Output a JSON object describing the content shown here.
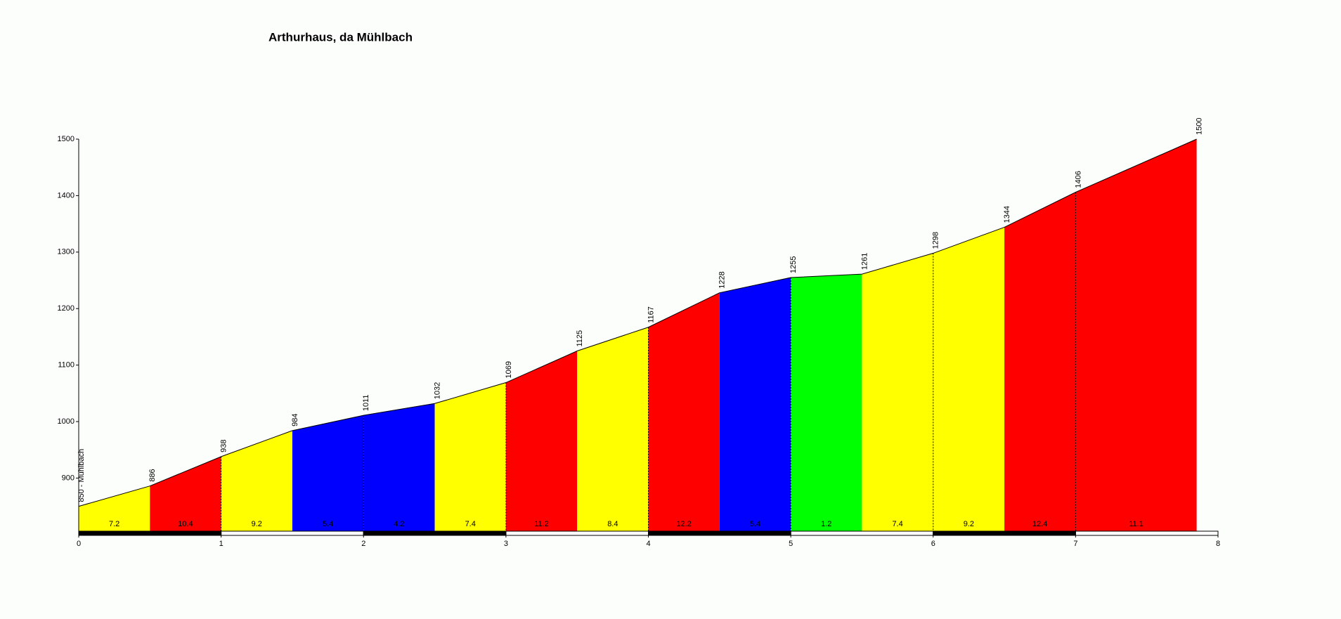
{
  "chart_data": {
    "type": "area",
    "title": "Arthurhaus, da Mühlbach",
    "x": [
      0,
      0.5,
      1,
      1.5,
      2,
      2.5,
      3,
      3.5,
      4,
      4.5,
      5,
      5.5,
      6,
      6.5,
      7,
      7.85
    ],
    "values": [
      850,
      886,
      938,
      984,
      1011,
      1032,
      1069,
      1125,
      1167,
      1228,
      1255,
      1261,
      1298,
      1344,
      1406,
      1500
    ],
    "value_labels": [
      "850 - Mühlbach",
      "886",
      "938",
      "984",
      "1011",
      "1032",
      "1069",
      "1125",
      "1167",
      "1228",
      "1255",
      "1261",
      "1298",
      "1344",
      "1406",
      "1500"
    ],
    "gradients": [
      7.2,
      10.4,
      9.2,
      5.4,
      4.2,
      7.4,
      11.2,
      8.4,
      12.2,
      5.4,
      1.2,
      7.4,
      9.2,
      12.4,
      11.1
    ],
    "segment_colors": [
      "#ffff00",
      "#ff0000",
      "#ffff00",
      "#0000ff",
      "#0000ff",
      "#ffff00",
      "#ff0000",
      "#ffff00",
      "#ff0000",
      "#0000ff",
      "#00ff00",
      "#ffff00",
      "#ffff00",
      "#ff0000",
      "#ff0000"
    ],
    "xlim": [
      0,
      8
    ],
    "xticks": [
      0,
      1,
      2,
      3,
      4,
      5,
      6,
      7,
      8
    ],
    "ylim": [
      806,
      1500
    ],
    "yticks": [
      900,
      1000,
      1100,
      1200,
      1300,
      1400,
      1500
    ]
  }
}
